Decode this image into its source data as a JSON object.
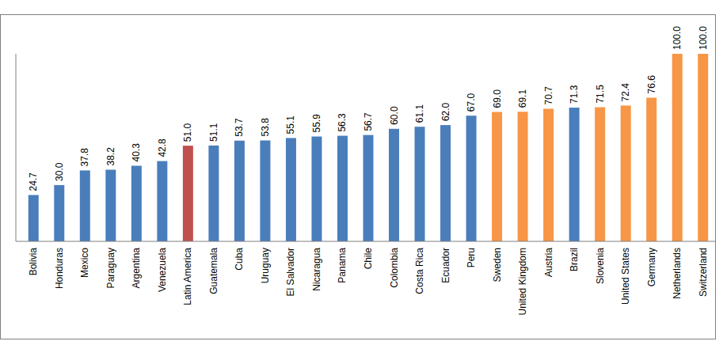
{
  "chart_data": {
    "type": "bar",
    "categories": [
      "Bolivia",
      "Honduras",
      "Mexico",
      "Paraguay",
      "Argentina",
      "Venezuela",
      "Latin America",
      "Guatemala",
      "Cuba",
      "Uruguay",
      "El Salvador",
      "Nicaragua",
      "Panama",
      "Chile",
      "Colombia",
      "Costa Rica",
      "Ecuador",
      "Peru",
      "Sweden",
      "United Kingdom",
      "Austria",
      "Brazil",
      "Slovenia",
      "United States",
      "Germany",
      "Netherlands",
      "Switzerland"
    ],
    "values": [
      24.7,
      30.0,
      37.8,
      38.2,
      40.3,
      42.8,
      51.0,
      51.1,
      53.7,
      53.8,
      55.1,
      55.9,
      56.3,
      56.7,
      60.0,
      61.1,
      62.0,
      67.0,
      69.0,
      69.1,
      70.7,
      71.3,
      71.5,
      72.4,
      76.6,
      100.0,
      100.0
    ],
    "value_labels": [
      "24.7",
      "30.0",
      "37.8",
      "38.2",
      "40.3",
      "42.8",
      "51.0",
      "51.1",
      "53.7",
      "53.8",
      "55.1",
      "55.9",
      "56.3",
      "56.7",
      "60.0",
      "61.1",
      "62.0",
      "67.0",
      "69.0",
      "69.1",
      "70.7",
      "71.3",
      "71.5",
      "72.4",
      "76.6",
      "100.0",
      "100.0"
    ],
    "colors": [
      "#4a7ebb",
      "#4a7ebb",
      "#4a7ebb",
      "#4a7ebb",
      "#4a7ebb",
      "#4a7ebb",
      "#c0504d",
      "#4a7ebb",
      "#4a7ebb",
      "#4a7ebb",
      "#4a7ebb",
      "#4a7ebb",
      "#4a7ebb",
      "#4a7ebb",
      "#4a7ebb",
      "#4a7ebb",
      "#4a7ebb",
      "#4a7ebb",
      "#f79646",
      "#f79646",
      "#f79646",
      "#4a7ebb",
      "#f79646",
      "#f79646",
      "#f79646",
      "#f79646",
      "#f79646"
    ],
    "ylim": [
      0,
      100
    ],
    "data_labels": true,
    "tick_labels": "x"
  }
}
